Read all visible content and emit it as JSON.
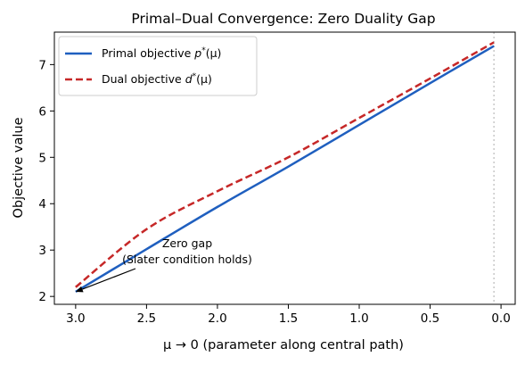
{
  "chart_data": {
    "type": "line",
    "title": "Primal–Dual Convergence: Zero Duality Gap",
    "xlabel": "μ → 0  (parameter along central path)",
    "ylabel": "Objective value",
    "xlim": [
      3.15,
      -0.1
    ],
    "ylim": [
      1.83,
      7.7
    ],
    "x_reversed": true,
    "xticks": [
      "3.0",
      "2.5",
      "2.0",
      "1.5",
      "1.0",
      "0.5",
      "0.0"
    ],
    "yticks": [
      "2",
      "3",
      "4",
      "5",
      "6",
      "7"
    ],
    "grid": false,
    "legend_position": "upper-left",
    "vline": {
      "x": 0.05,
      "style": "dotted",
      "color": "#bbbbbb"
    },
    "x": [
      3.0,
      2.5,
      2.0,
      1.5,
      1.0,
      0.5,
      0.05
    ],
    "series": [
      {
        "name": "Primal objective p*(μ)",
        "name_main": "Primal objective ",
        "name_sym": "p",
        "name_tail": "(μ)",
        "style": "solid",
        "color": "#1f5fbf",
        "values": [
          2.1,
          3.02,
          3.93,
          4.8,
          5.7,
          6.6,
          7.4
        ]
      },
      {
        "name": "Dual objective d*(μ)",
        "name_main": "Dual objective ",
        "name_sym": "d",
        "name_tail": "(μ)",
        "style": "dashed",
        "color": "#c62828",
        "values": [
          2.2,
          3.45,
          4.27,
          5.0,
          5.85,
          6.7,
          7.48
        ]
      }
    ],
    "annotation": {
      "line1": "Zero gap",
      "line2": "(Slater condition holds)",
      "point": [
        3.0,
        2.1
      ]
    }
  }
}
